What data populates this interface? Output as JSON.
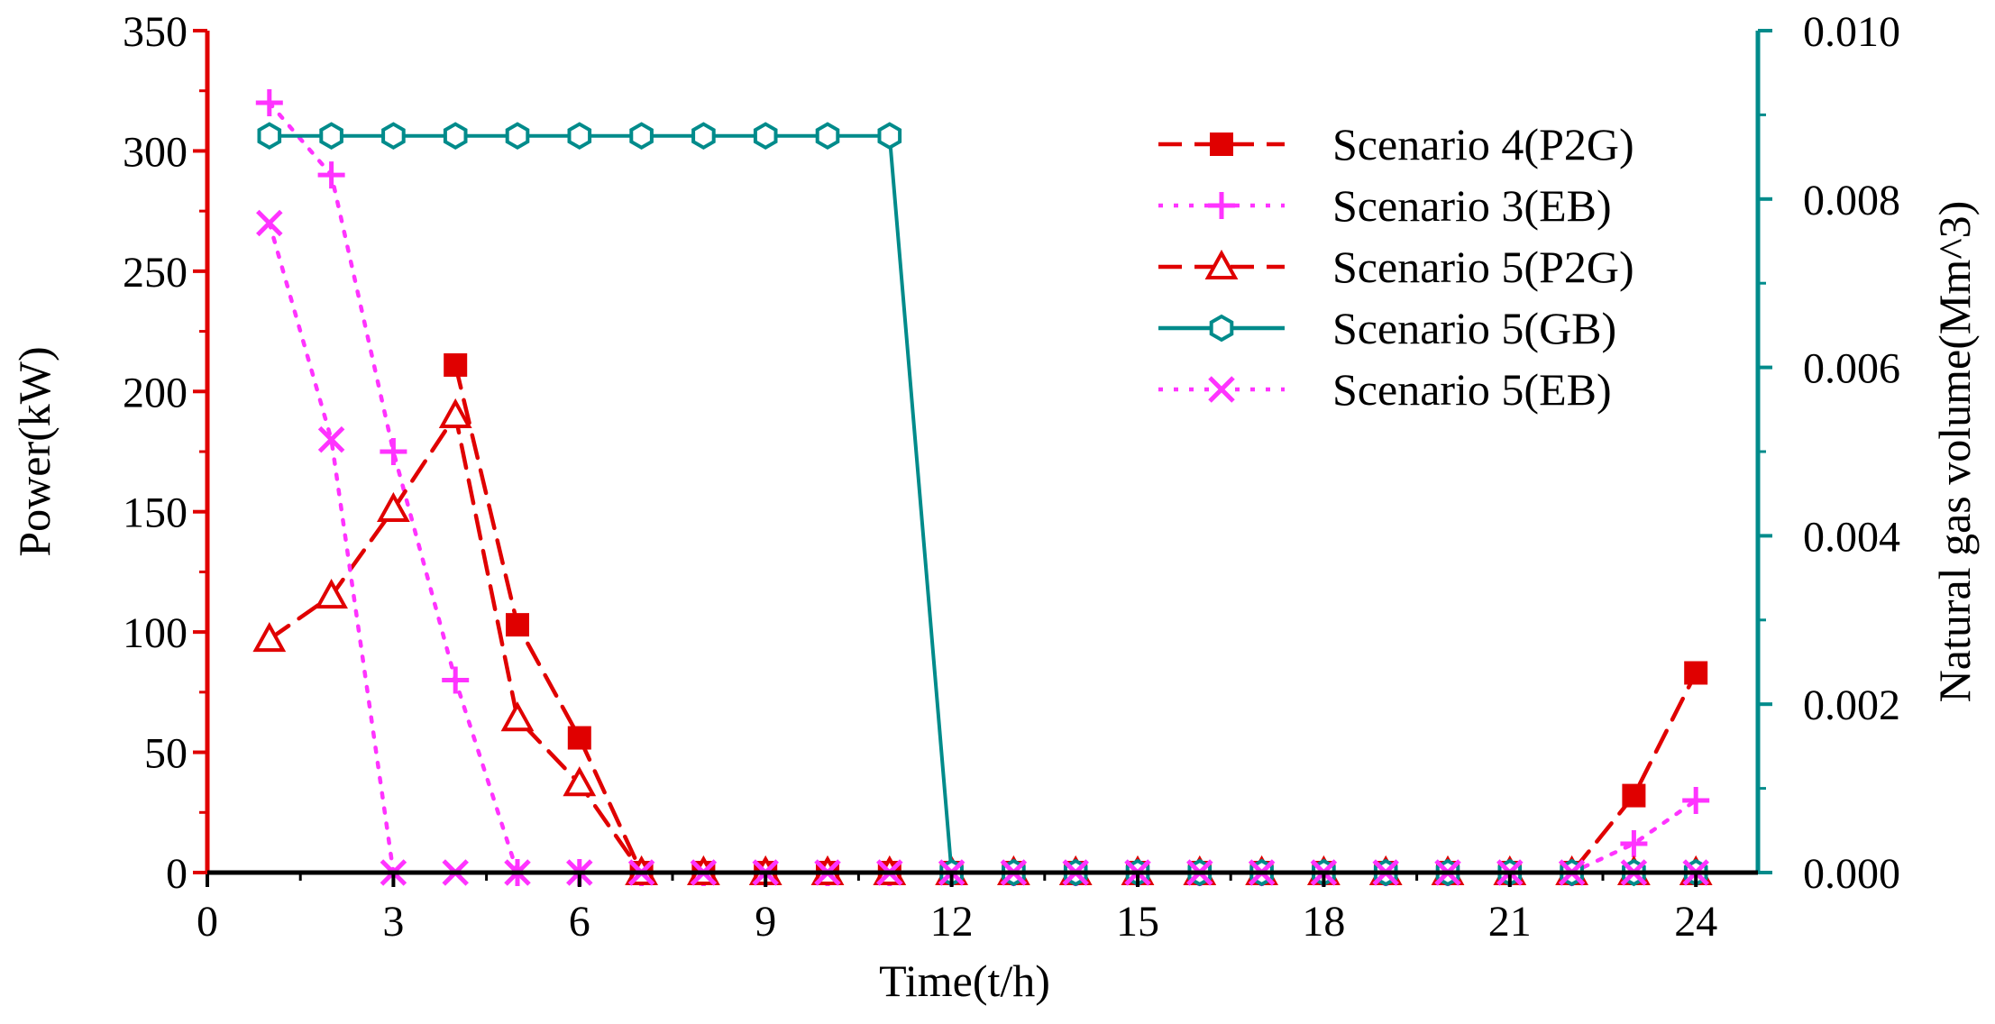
{
  "chart_data": {
    "type": "line",
    "title": "",
    "xlabel": "Time(t/h)",
    "ylabel": "Power(kW)",
    "y2label": "Natural gas volume(Mm^3)",
    "xlim": [
      0,
      25
    ],
    "ylim": [
      0,
      350
    ],
    "y2lim": [
      0,
      0.01
    ],
    "xticks": [
      "0",
      "3",
      "6",
      "9",
      "12",
      "15",
      "18",
      "21",
      "24"
    ],
    "yticks": [
      "0",
      "50",
      "100",
      "150",
      "200",
      "250",
      "300",
      "350"
    ],
    "y2ticks": [
      "0.000",
      "0.002",
      "0.004",
      "0.006",
      "0.008",
      "0.010"
    ],
    "legend_position": "top-right",
    "colors": {
      "left_axis": "#e00000",
      "right_axis": "#008b8b",
      "bottom_axis": "#000000"
    },
    "x": [
      1,
      2,
      3,
      4,
      5,
      6,
      7,
      8,
      9,
      10,
      11,
      12,
      13,
      14,
      15,
      16,
      17,
      18,
      19,
      20,
      21,
      22,
      23,
      24
    ],
    "series": [
      {
        "name": "Scenario 4(P2G)",
        "axis": "left",
        "color": "#e00000",
        "marker": "square",
        "dash": "dashed",
        "values": [
          null,
          null,
          null,
          211,
          103,
          56,
          0,
          0,
          0,
          0,
          0,
          0,
          0,
          0,
          0,
          0,
          0,
          0,
          0,
          0,
          0,
          0,
          32,
          83
        ]
      },
      {
        "name": "Scenario 3(EB)",
        "axis": "left",
        "color": "#ff33ff",
        "marker": "plus",
        "dash": "dotted",
        "values": [
          320,
          290,
          175,
          80,
          0,
          0,
          0,
          0,
          0,
          0,
          0,
          0,
          0,
          0,
          0,
          0,
          0,
          0,
          0,
          0,
          0,
          0,
          12,
          30
        ]
      },
      {
        "name": "Scenario 5(P2G)",
        "axis": "left",
        "color": "#e00000",
        "marker": "triangle",
        "dash": "dashed",
        "values": [
          97,
          115,
          151,
          190,
          64,
          37,
          0,
          0,
          0,
          0,
          0,
          0,
          0,
          0,
          0,
          0,
          0,
          0,
          0,
          0,
          0,
          0,
          0,
          0
        ]
      },
      {
        "name": "Scenario 5(GB)",
        "axis": "right",
        "color": "#008b8b",
        "marker": "hexagon",
        "dash": "solid",
        "values": [
          0.00875,
          0.00875,
          0.00875,
          0.00875,
          0.00875,
          0.00875,
          0.00875,
          0.00875,
          0.00875,
          0.00875,
          0.00875,
          0,
          0,
          0,
          0,
          0,
          0,
          0,
          0,
          0,
          0,
          0,
          0,
          0
        ]
      },
      {
        "name": "Scenario 5(EB)",
        "axis": "left",
        "color": "#ff33ff",
        "marker": "cross",
        "dash": "dotted",
        "values": [
          270,
          180,
          0,
          0,
          0,
          0,
          0,
          0,
          0,
          0,
          0,
          0,
          0,
          0,
          0,
          0,
          0,
          0,
          0,
          0,
          0,
          0,
          0,
          0
        ]
      }
    ]
  }
}
